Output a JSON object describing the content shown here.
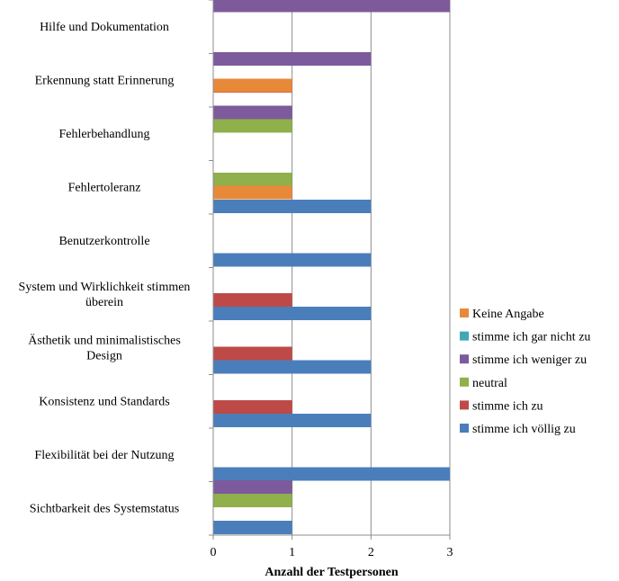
{
  "chart_data": {
    "type": "bar",
    "orientation": "horizontal",
    "xlabel": "Anzahl der Testpersonen",
    "xlim": [
      0,
      3
    ],
    "xticks": [
      0,
      1,
      2,
      3
    ],
    "grid": true,
    "legend_position": "right",
    "categories": [
      [
        "Hilfe und Dokumentation"
      ],
      [
        "Erkennung statt Erinnerung"
      ],
      [
        "Fehlerbehandlung"
      ],
      [
        "Fehlertoleranz"
      ],
      [
        "Benutzerkontrolle"
      ],
      [
        "System und Wirklichkeit  stimmen",
        "überein"
      ],
      [
        "Ästhetik und minimalistisches",
        "Design"
      ],
      [
        "Konsistenz und Standards"
      ],
      [
        "Flexibilität bei  der Nutzung"
      ],
      [
        "Sichtbarkeit des Systemstatus"
      ]
    ],
    "series": [
      {
        "name": "Keine Angabe",
        "color": "#E8893A",
        "values": [
          0,
          0,
          1,
          0,
          1,
          0,
          0,
          0,
          0,
          0
        ]
      },
      {
        "name": "stimme ich gar nicht zu",
        "color": "#3FA7B8",
        "values": [
          0,
          0,
          0,
          0,
          0,
          0,
          0,
          0,
          0,
          0
        ]
      },
      {
        "name": "stimme ich  weniger zu",
        "color": "#7D5A9C",
        "values": [
          3,
          2,
          1,
          0,
          0,
          0,
          0,
          0,
          0,
          1
        ]
      },
      {
        "name": "neutral",
        "color": "#8FB04A",
        "values": [
          0,
          0,
          1,
          1,
          0,
          0,
          0,
          0,
          0,
          1
        ]
      },
      {
        "name": "stimme ich zu",
        "color": "#BE4A48",
        "values": [
          0,
          1,
          0,
          0,
          0,
          1,
          1,
          1,
          0,
          0
        ]
      },
      {
        "name": "stimme ich  völlig zu",
        "color": "#4A7EBB",
        "values": [
          0,
          0,
          0,
          2,
          2,
          2,
          2,
          2,
          3,
          1
        ]
      }
    ]
  }
}
